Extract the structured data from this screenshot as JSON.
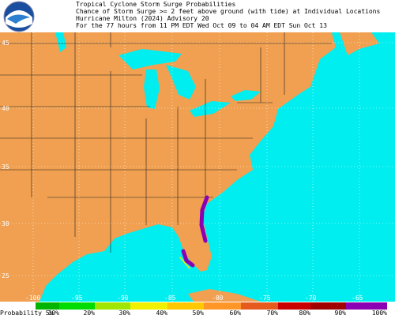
{
  "header": {
    "lines": [
      "Tropical Cyclone Storm Surge Probabilities",
      "Chance of Storm Surge >= 2 feet above ground (with tide) at Individual Locations",
      "Hurricane Milton (2024) Advisory 20",
      "For the 77 hours from 11 PM EDT Wed Oct 09 to 04 AM EDT Sun Oct 13"
    ]
  },
  "map": {
    "lat_labels": [
      45,
      40,
      35,
      30,
      25
    ],
    "lon_labels": [
      -100,
      -95,
      -90,
      -85,
      -80,
      -75,
      -70,
      -65
    ],
    "land_color": "#f0a050",
    "water_color": "#00eef0"
  },
  "legend": {
    "title": "Probability 5%",
    "ticks": [
      "10%",
      "20%",
      "30%",
      "40%",
      "50%",
      "60%",
      "70%",
      "80%",
      "90%",
      "100%"
    ],
    "colors": [
      "#008c00",
      "#00b400",
      "#00dc00",
      "#a0e600",
      "#f0f000",
      "#ffc800",
      "#ff9628",
      "#e65a1e",
      "#c80000",
      "#a00000",
      "#8c00b4"
    ]
  }
}
